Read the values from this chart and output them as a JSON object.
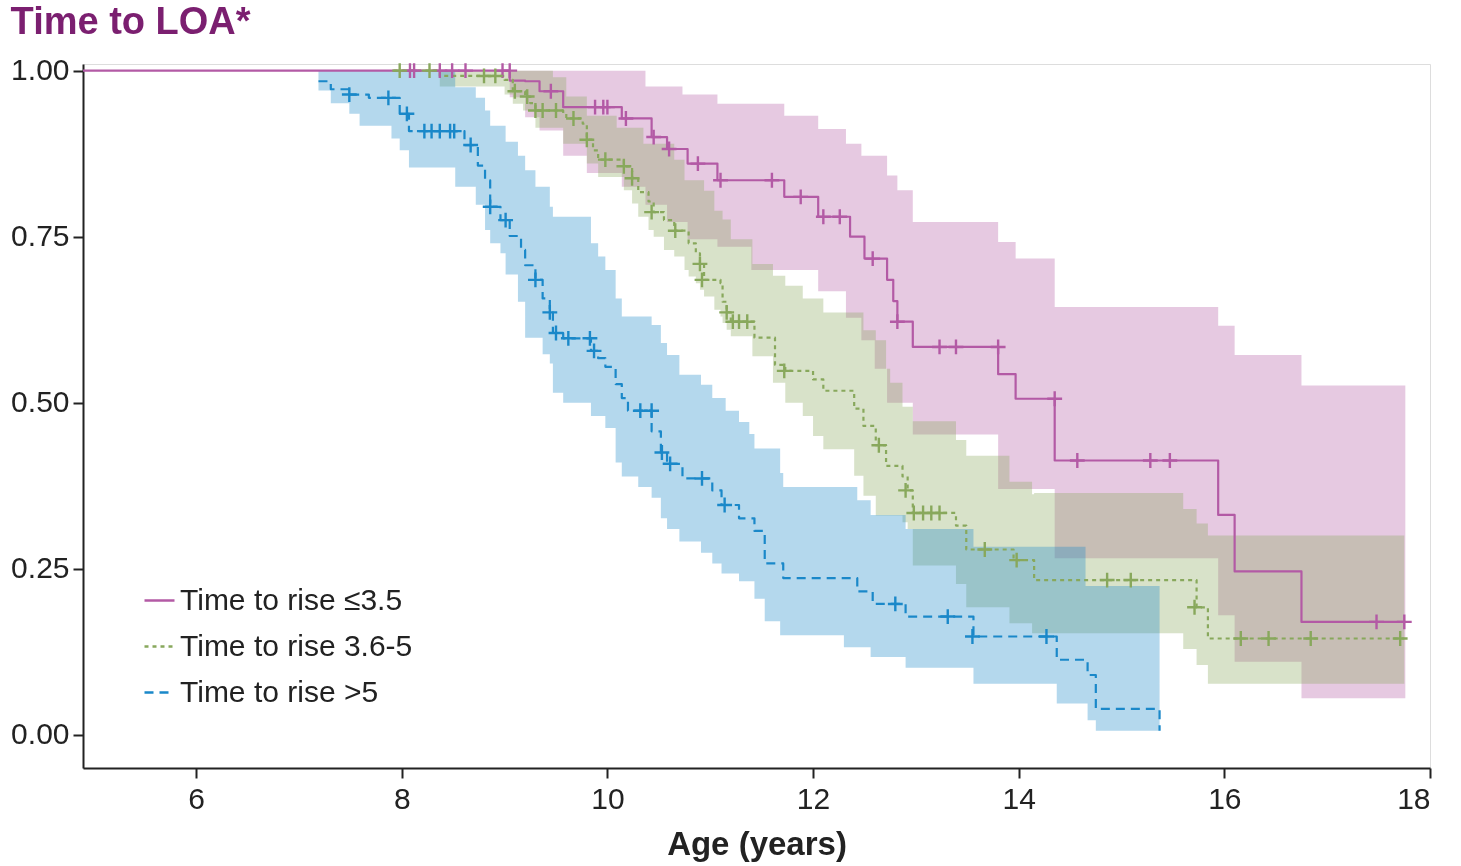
{
  "chart_data": {
    "type": "step",
    "title": "Time to LOA*",
    "xlabel": "Age (years)",
    "xlim": [
      4.9,
      18
    ],
    "xticks": [
      6,
      8,
      10,
      12,
      14,
      16,
      18
    ],
    "ylim": [
      -0.05,
      1.01
    ],
    "yticks": [
      {
        "value": 0,
        "label": "0.00"
      },
      {
        "value": 0.25,
        "label": "0.25"
      },
      {
        "value": 0.5,
        "label": "0.50"
      },
      {
        "value": 0.75,
        "label": "0.75"
      },
      {
        "value": 1,
        "label": "1.00"
      }
    ],
    "grid": false,
    "legend": "bottom left",
    "series": [
      {
        "name": "Time to rise ≤3.5",
        "color": "#b35aa5",
        "line_style": "solid",
        "x": [
          4.9,
          9.05,
          9.2,
          9.34,
          9.57,
          9.8,
          10.14,
          10.37,
          10.43,
          10.58,
          10.73,
          10.78,
          11.07,
          11.4,
          11.72,
          12.05,
          12.32,
          12.36,
          12.47,
          12.5,
          12.6,
          12.72,
          12.78,
          12.82,
          12.97,
          13.8,
          13.97,
          14.35,
          15.94,
          16.1,
          16.75,
          17.76
        ],
        "values": [
          1.0,
          0.985,
          0.984,
          0.969,
          0.945,
          0.945,
          0.928,
          0.928,
          0.9,
          0.882,
          0.882,
          0.86,
          0.835,
          0.835,
          0.81,
          0.78,
          0.78,
          0.75,
          0.75,
          0.717,
          0.717,
          0.685,
          0.653,
          0.622,
          0.584,
          0.543,
          0.506,
          0.413,
          0.331,
          0.246,
          0.17,
          0.17
        ],
        "lower": [
          1.0,
          0.96,
          0.93,
          0.91,
          0.872,
          0.846,
          0.825,
          0.798,
          0.798,
          0.772,
          0.772,
          0.746,
          0.735,
          0.7,
          0.7,
          0.668,
          0.628,
          0.628,
          0.594,
          0.594,
          0.551,
          0.5,
          0.5,
          0.5,
          0.452,
          0.37,
          0.37,
          0.266,
          0.18,
          0.11,
          0.055,
          0.055
        ],
        "upper": [
          1.0,
          1.0,
          1.0,
          1.0,
          1.0,
          1.0,
          1.0,
          0.976,
          0.976,
          0.976,
          0.964,
          0.964,
          0.95,
          0.95,
          0.932,
          0.912,
          0.89,
          0.89,
          0.872,
          0.872,
          0.872,
          0.842,
          0.842,
          0.82,
          0.772,
          0.742,
          0.717,
          0.644,
          0.616,
          0.572,
          0.526,
          0.526
        ]
      },
      {
        "name": "Time to rise 3.6-5",
        "color": "#88a85c",
        "line_style": "dotted",
        "x": [
          7.92,
          8.37,
          8.83,
          9.0,
          9.08,
          9.18,
          9.2,
          9.25,
          9.3,
          9.47,
          9.57,
          9.6,
          9.76,
          9.8,
          9.86,
          9.91,
          10.09,
          10.16,
          10.24,
          10.3,
          10.35,
          10.4,
          10.45,
          10.55,
          10.65,
          10.75,
          10.79,
          10.86,
          10.9,
          10.94,
          11.04,
          11.1,
          11.12,
          11.16,
          11.2,
          11.41,
          11.43,
          11.61,
          11.63,
          11.73,
          11.9,
          12.0,
          12.1,
          12.4,
          12.49,
          12.61,
          12.71,
          12.75,
          12.87,
          12.92,
          12.97,
          13.39,
          13.49,
          13.91,
          13.95,
          14.13,
          14.15,
          15.6,
          15.73,
          15.84,
          17.75
        ],
        "values": [
          1.0,
          0.992,
          0.992,
          0.986,
          0.969,
          0.969,
          0.961,
          0.951,
          0.94,
          0.94,
          0.935,
          0.928,
          0.92,
          0.896,
          0.88,
          0.866,
          0.866,
          0.856,
          0.838,
          0.817,
          0.817,
          0.803,
          0.787,
          0.775,
          0.759,
          0.759,
          0.74,
          0.725,
          0.709,
          0.685,
          0.685,
          0.68,
          0.652,
          0.636,
          0.622,
          0.622,
          0.598,
          0.598,
          0.557,
          0.548,
          0.548,
          0.535,
          0.518,
          0.491,
          0.465,
          0.436,
          0.405,
          0.405,
          0.389,
          0.368,
          0.334,
          0.315,
          0.279,
          0.279,
          0.263,
          0.263,
          0.233,
          0.233,
          0.192,
          0.145,
          0.145
        ],
        "lower": [
          1.0,
          0.976,
          0.976,
          0.964,
          0.95,
          0.94,
          0.94,
          0.94,
          0.914,
          0.914,
          0.89,
          0.89,
          0.89,
          0.86,
          0.86,
          0.84,
          0.84,
          0.82,
          0.8,
          0.78,
          0.78,
          0.76,
          0.75,
          0.73,
          0.72,
          0.7,
          0.69,
          0.68,
          0.67,
          0.66,
          0.64,
          0.63,
          0.62,
          0.61,
          0.6,
          0.57,
          0.57,
          0.53,
          0.53,
          0.5,
          0.48,
          0.45,
          0.43,
          0.39,
          0.36,
          0.33,
          0.33,
          0.33,
          0.32,
          0.31,
          0.255,
          0.227,
          0.192,
          0.168,
          0.168,
          0.153,
          0.153,
          0.129,
          0.105,
          0.077,
          0.077
        ],
        "upper": [
          1.0,
          1.0,
          1.0,
          1.0,
          1.0,
          1.0,
          1.0,
          1.0,
          1.0,
          0.99,
          0.99,
          0.961,
          0.961,
          0.932,
          0.932,
          0.932,
          0.914,
          0.914,
          0.914,
          0.914,
          0.89,
          0.89,
          0.89,
          0.89,
          0.866,
          0.835,
          0.835,
          0.835,
          0.835,
          0.819,
          0.789,
          0.789,
          0.776,
          0.776,
          0.746,
          0.709,
          0.709,
          0.691,
          0.691,
          0.676,
          0.657,
          0.657,
          0.636,
          0.636,
          0.609,
          0.594,
          0.551,
          0.53,
          0.494,
          0.494,
          0.472,
          0.444,
          0.42,
          0.381,
          0.381,
          0.362,
          0.364,
          0.34,
          0.318,
          0.3,
          0.3
        ]
      },
      {
        "name": "Time to rise >5",
        "color": "#1a88c9",
        "line_style": "dashed",
        "x": [
          7.19,
          7.31,
          7.49,
          7.59,
          7.68,
          7.9,
          7.98,
          8.07,
          8.52,
          8.61,
          8.72,
          8.74,
          8.81,
          8.86,
          8.96,
          9.01,
          9.05,
          9.13,
          9.16,
          9.2,
          9.3,
          9.37,
          9.44,
          9.47,
          9.57,
          9.84,
          9.91,
          9.98,
          10.08,
          10.14,
          10.2,
          10.3,
          10.43,
          10.52,
          10.58,
          10.7,
          10.73,
          10.91,
          11.02,
          11.11,
          11.15,
          11.28,
          11.38,
          11.43,
          11.53,
          11.68,
          11.71,
          12.3,
          12.43,
          12.56,
          12.58,
          12.9,
          13.56,
          14.37,
          14.65,
          14.67,
          14.75,
          15.37
        ],
        "values": [
          0.984,
          0.972,
          0.964,
          0.964,
          0.959,
          0.959,
          0.935,
          0.909,
          0.909,
          0.888,
          0.888,
          0.857,
          0.835,
          0.795,
          0.775,
          0.775,
          0.751,
          0.751,
          0.73,
          0.707,
          0.685,
          0.657,
          0.636,
          0.605,
          0.597,
          0.578,
          0.567,
          0.554,
          0.528,
          0.507,
          0.488,
          0.488,
          0.457,
          0.425,
          0.408,
          0.408,
          0.386,
          0.386,
          0.368,
          0.346,
          0.346,
          0.326,
          0.326,
          0.307,
          0.258,
          0.258,
          0.236,
          0.236,
          0.216,
          0.216,
          0.197,
          0.178,
          0.148,
          0.113,
          0.113,
          0.09,
          0.039,
          0.006
        ],
        "lower": [
          0.97,
          0.951,
          0.935,
          0.917,
          0.917,
          0.898,
          0.88,
          0.854,
          0.825,
          0.825,
          0.798,
          0.798,
          0.76,
          0.74,
          0.725,
          0.693,
          0.693,
          0.652,
          0.652,
          0.598,
          0.598,
          0.573,
          0.559,
          0.515,
          0.5,
          0.48,
          0.48,
          0.462,
          0.41,
          0.389,
          0.389,
          0.373,
          0.357,
          0.326,
          0.31,
          0.291,
          0.291,
          0.274,
          0.258,
          0.243,
          0.243,
          0.231,
          0.231,
          0.205,
          0.171,
          0.15,
          0.15,
          0.132,
          0.132,
          0.117,
          0.117,
          0.101,
          0.077,
          0.047,
          0.047,
          0.022,
          0.006,
          0.006
        ],
        "upper": [
          1.0,
          1.0,
          1.0,
          1.0,
          1.0,
          1.0,
          1.0,
          1.0,
          0.975,
          0.975,
          0.959,
          0.959,
          0.94,
          0.917,
          0.917,
          0.893,
          0.893,
          0.872,
          0.872,
          0.85,
          0.825,
          0.825,
          0.795,
          0.78,
          0.78,
          0.74,
          0.72,
          0.7,
          0.657,
          0.63,
          0.63,
          0.63,
          0.617,
          0.59,
          0.572,
          0.542,
          0.542,
          0.527,
          0.507,
          0.507,
          0.488,
          0.471,
          0.453,
          0.431,
          0.431,
          0.394,
          0.373,
          0.373,
          0.353,
          0.331,
          0.331,
          0.31,
          0.283,
          0.283,
          0.224,
          0.224,
          0.224,
          0.224
        ]
      },
      {
        "type": "scatter",
        "color": "#b35aa5",
        "marker": "cross",
        "x": [
          8.08,
          8.12,
          8.37,
          8.49,
          8.62,
          8.98,
          9.05,
          9.45,
          9.88,
          9.96,
          10.0,
          10.18,
          10.45,
          10.6,
          10.88,
          11.1,
          11.6,
          11.88,
          12.1,
          12.26,
          12.58,
          12.82,
          13.23,
          13.39,
          13.8,
          14.35,
          14.57,
          15.28,
          15.47,
          17.48,
          17.75
        ],
        "values": [
          1.0,
          1.0,
          1.0,
          1.0,
          1.0,
          1.0,
          1.0,
          0.969,
          0.945,
          0.945,
          0.945,
          0.928,
          0.9,
          0.882,
          0.86,
          0.835,
          0.835,
          0.81,
          0.78,
          0.78,
          0.717,
          0.622,
          0.584,
          0.584,
          0.584,
          0.506,
          0.413,
          0.413,
          0.413,
          0.17,
          0.17
        ]
      },
      {
        "type": "scatter",
        "color": "#88a85c",
        "marker": "cross",
        "x": [
          7.98,
          8.27,
          8.8,
          8.91,
          9.1,
          9.22,
          9.3,
          9.37,
          9.5,
          9.67,
          9.8,
          9.98,
          10.16,
          10.24,
          10.43,
          10.66,
          10.9,
          10.92,
          11.16,
          11.22,
          11.28,
          11.36,
          11.72,
          12.64,
          12.9,
          12.98,
          13.07,
          13.15,
          13.23,
          13.67,
          13.98,
          14.86,
          15.09,
          15.71,
          16.16,
          16.43,
          16.84,
          17.71
        ],
        "values": [
          1.0,
          1.0,
          0.992,
          0.992,
          0.969,
          0.961,
          0.94,
          0.94,
          0.94,
          0.928,
          0.896,
          0.866,
          0.856,
          0.838,
          0.787,
          0.759,
          0.709,
          0.685,
          0.636,
          0.622,
          0.622,
          0.622,
          0.548,
          0.436,
          0.368,
          0.334,
          0.334,
          0.334,
          0.334,
          0.279,
          0.263,
          0.233,
          0.233,
          0.192,
          0.145,
          0.145,
          0.145,
          0.145
        ]
      },
      {
        "type": "scatter",
        "color": "#1a88c9",
        "marker": "cross",
        "x": [
          7.49,
          7.87,
          8.05,
          8.22,
          8.29,
          8.37,
          8.47,
          8.51,
          8.67,
          8.86,
          9.01,
          9.3,
          9.44,
          9.5,
          9.62,
          9.83,
          9.87,
          10.32,
          10.43,
          10.53,
          10.61,
          10.92,
          11.14,
          12.8,
          13.31,
          13.55,
          14.27
        ],
        "values": [
          0.964,
          0.959,
          0.935,
          0.909,
          0.909,
          0.909,
          0.909,
          0.909,
          0.888,
          0.795,
          0.775,
          0.685,
          0.636,
          0.605,
          0.597,
          0.597,
          0.578,
          0.488,
          0.488,
          0.425,
          0.408,
          0.386,
          0.346,
          0.197,
          0.178,
          0.148,
          0.148
        ]
      }
    ]
  }
}
